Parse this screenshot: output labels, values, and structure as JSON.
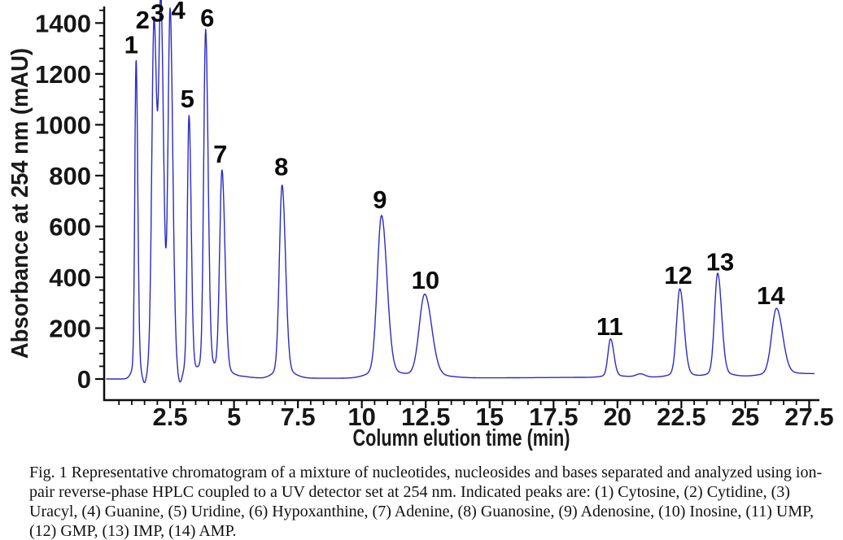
{
  "figure": {
    "caption": "Fig. 1 Representative chromatogram of a mixture of nucleotides, nucleosides and bases separated and analyzed using ion-pair reverse-phase HPLC coupled to a UV detector set at 254 nm. Indicated peaks are: (1) Cytosine, (2) Cytidine, (3) Uracyl, (4) Guanine, (5) Uridine, (6) Hypoxanthine, (7) Adenine, (8) Guanosine, (9) Adenosine, (10) Inosine, (11) UMP, (12) GMP, (13) IMP, (14) AMP."
  },
  "chart_data": {
    "type": "line",
    "title": "",
    "xlabel": "Column elution time (min)",
    "ylabel": "Absorbance at 254 nm (mAU)",
    "xlim": [
      -0.08,
      27.9
    ],
    "ylim": [
      -83,
      1465
    ],
    "x_major_ticks": [
      2.5,
      5,
      7.5,
      10,
      12.5,
      15,
      17.5,
      20,
      22.5,
      25,
      27.5
    ],
    "x_minor_step": 0.5,
    "y_major_ticks": [
      0,
      200,
      400,
      600,
      800,
      1000,
      1200,
      1400
    ],
    "y_minor_step": 50,
    "grid": false,
    "legend": "none",
    "line_color": "#2b2bc4",
    "axis_color": "#0d0d0d",
    "trace_end_min": 27.72,
    "peaks": [
      {
        "label": "1",
        "compound": "Cytosine",
        "time_min": 1.17,
        "height_mau": 1255,
        "sigma": 0.05,
        "label_offset": [
          -6,
          8
        ]
      },
      {
        "label": "2",
        "compound": "Cytidine",
        "time_min": 1.87,
        "height_mau": 1375,
        "sigma": 0.085,
        "label_offset": [
          -14,
          1
        ]
      },
      {
        "label": "3",
        "compound": "Uracyl",
        "time_min": 2.14,
        "height_mau": 1390,
        "sigma": 0.08,
        "label_offset": [
          -4,
          5
        ]
      },
      {
        "label": "4",
        "compound": "Guanine",
        "time_min": 2.5,
        "height_mau": 1410,
        "sigma": 0.08,
        "label_offset": [
          10,
          2
        ]
      },
      {
        "label": "5",
        "compound": "Uridine",
        "time_min": 3.24,
        "height_mau": 1030,
        "sigma": 0.065,
        "label_offset": [
          -2,
          12
        ]
      },
      {
        "label": "6",
        "compound": "Hypoxanthine",
        "time_min": 3.89,
        "height_mau": 1370,
        "sigma": 0.075,
        "label_offset": [
          2,
          5
        ]
      },
      {
        "label": "7",
        "compound": "Adenine",
        "time_min": 4.53,
        "height_mau": 815,
        "sigma": 0.09,
        "label_offset": [
          -2,
          11
        ]
      },
      {
        "label": "8",
        "compound": "Guanosine",
        "time_min": 6.88,
        "height_mau": 760,
        "sigma": 0.105,
        "label_offset": [
          -1,
          13
        ]
      },
      {
        "label": "9",
        "compound": "Adenosine",
        "time_min": 10.77,
        "height_mau": 640,
        "sigma": 0.165,
        "label_offset": [
          -2,
          10
        ]
      },
      {
        "label": "10",
        "compound": "Inosine",
        "time_min": 12.46,
        "height_mau": 330,
        "sigma": 0.21,
        "label_offset": [
          1,
          8
        ]
      },
      {
        "label": "11",
        "compound": "UMP",
        "time_min": 19.73,
        "height_mau": 150,
        "sigma": 0.1,
        "label_offset": [
          -1,
          7
        ]
      },
      {
        "label": "12",
        "compound": "GMP",
        "time_min": 22.44,
        "height_mau": 348,
        "sigma": 0.125,
        "label_offset": [
          -2,
          8
        ]
      },
      {
        "label": "13",
        "compound": "IMP",
        "time_min": 23.92,
        "height_mau": 408,
        "sigma": 0.12,
        "label_offset": [
          3,
          6
        ]
      },
      {
        "label": "14",
        "compound": "AMP",
        "time_min": 26.22,
        "height_mau": 265,
        "sigma": 0.185,
        "label_offset": [
          -7,
          9
        ]
      }
    ],
    "baseline_points": [
      [
        0,
        0
      ],
      [
        4.7,
        2
      ],
      [
        5.4,
        9
      ],
      [
        6.1,
        3
      ],
      [
        12.8,
        3
      ],
      [
        16,
        5
      ],
      [
        19.3,
        7
      ],
      [
        20.5,
        9
      ],
      [
        22.0,
        7
      ],
      [
        23.2,
        7
      ],
      [
        24.6,
        9
      ],
      [
        25.7,
        11
      ],
      [
        26.9,
        16
      ],
      [
        27.72,
        20
      ]
    ],
    "minor_features": [
      {
        "time_min": 20.9,
        "height_mau": 12,
        "sigma": 0.17
      }
    ],
    "dips": [
      {
        "time_min": 1.5,
        "depth_mau": 55,
        "sigma": 0.09
      },
      {
        "time_min": 2.88,
        "depth_mau": 60,
        "sigma": 0.09
      }
    ]
  }
}
